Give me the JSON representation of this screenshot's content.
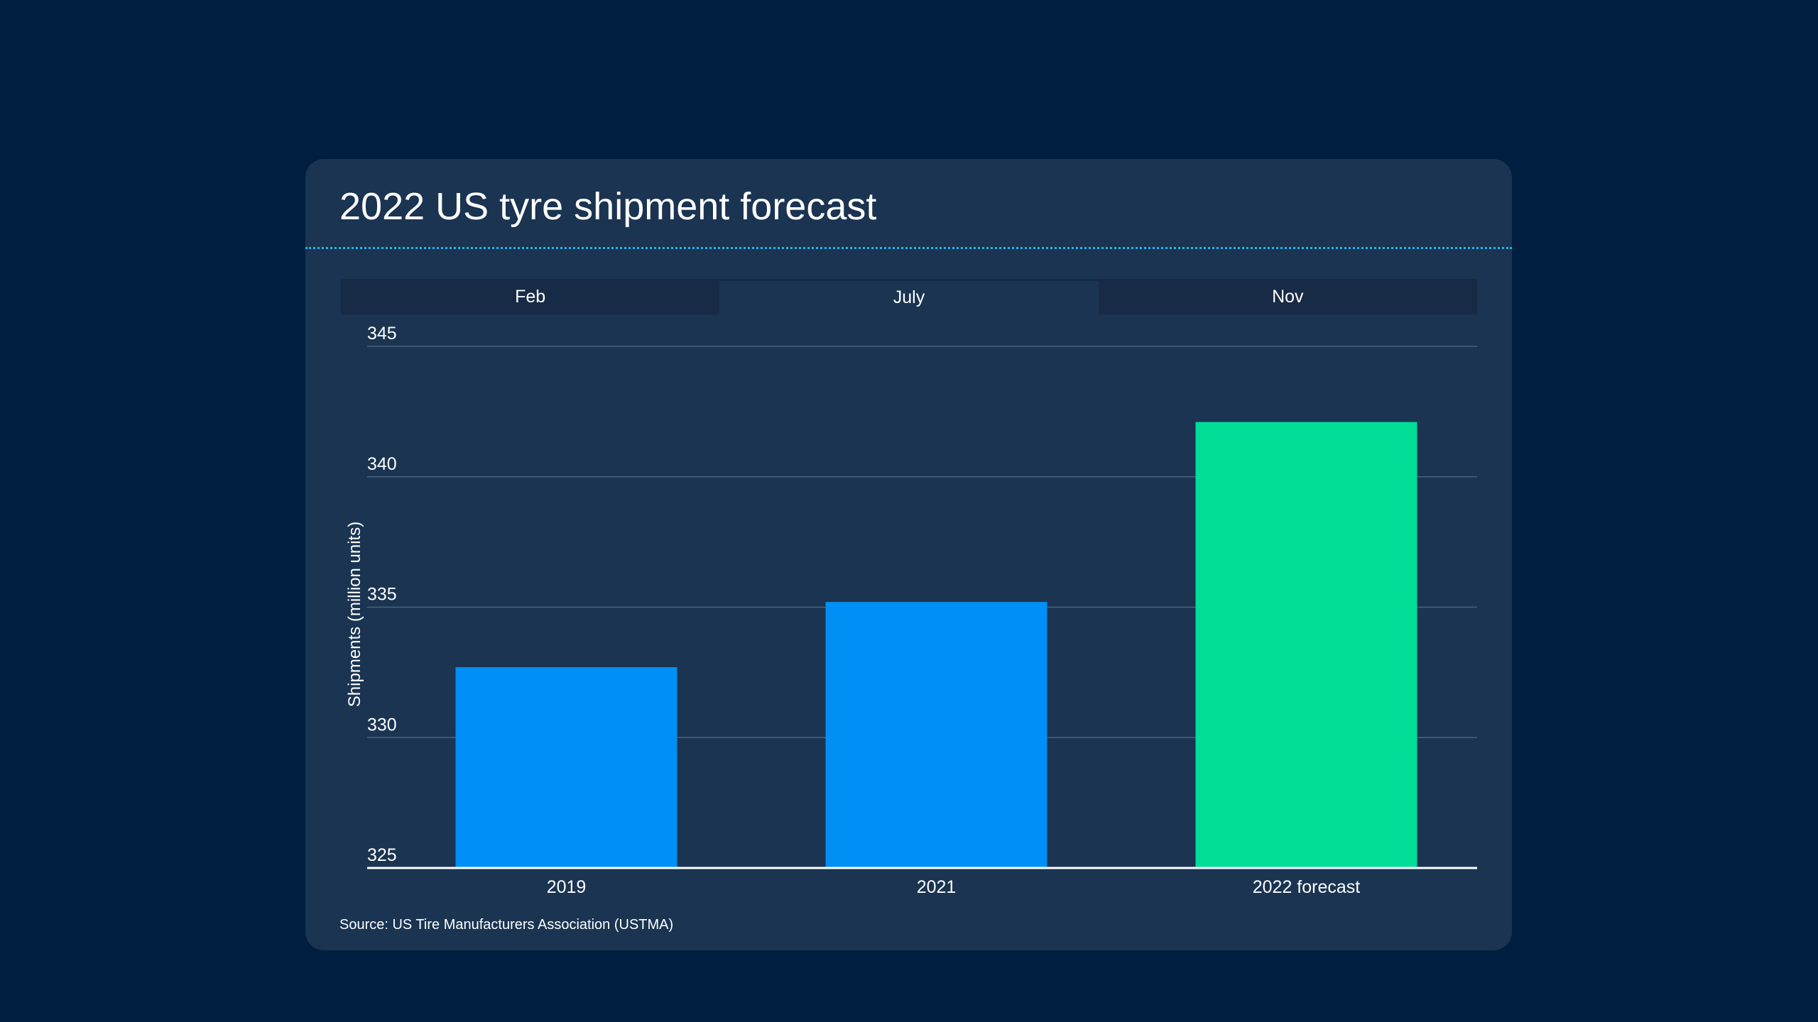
{
  "header": {
    "title": "2022 US tyre shipment forecast"
  },
  "tabs": [
    {
      "label": "Feb",
      "active": false
    },
    {
      "label": "July",
      "active": true
    },
    {
      "label": "Nov",
      "active": false
    }
  ],
  "chart_data": {
    "type": "bar",
    "title": "2022 US tyre shipment forecast",
    "xlabel": "",
    "ylabel": "Shipments (million units)",
    "categories": [
      "2019",
      "2021",
      "2022 forecast"
    ],
    "values": [
      332.7,
      335.2,
      342.1
    ],
    "colors": [
      "#008ff5",
      "#008ff5",
      "#00de97"
    ],
    "ylim": [
      325,
      345
    ],
    "yticks": [
      "325",
      "330",
      "335",
      "340",
      "345"
    ],
    "grid": true
  },
  "footer": {
    "source": "Source: US Tire Manufacturers Association (USTMA)"
  }
}
